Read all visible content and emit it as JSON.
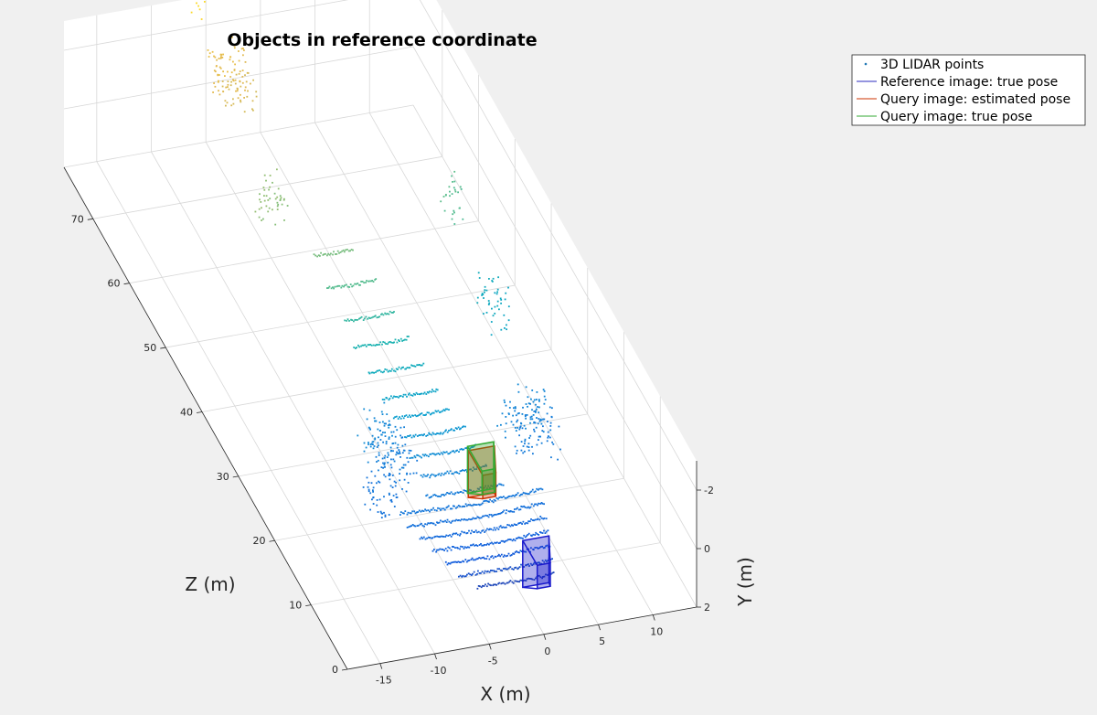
{
  "chart_data": {
    "type": "scatter",
    "subtype": "3d-point-cloud",
    "title": "Objects in reference coordinate",
    "xlabel": "X (m)",
    "ylabel": "Y (m)",
    "zlabel": "Z (m)",
    "xlim": [
      -18,
      14
    ],
    "ylim": [
      -3,
      2
    ],
    "zlim": [
      0,
      78
    ],
    "x_ticks": [
      -15,
      -10,
      -5,
      0,
      5,
      10
    ],
    "y_ticks": [
      -2,
      0,
      2
    ],
    "z_ticks": [
      0,
      10,
      20,
      30,
      40,
      50,
      60,
      70
    ],
    "x_tick_labels": [
      "-15",
      "-10",
      "-5",
      "0",
      "5",
      "10"
    ],
    "y_tick_labels": [
      "-2",
      "0",
      "2"
    ],
    "z_tick_labels": [
      "0",
      "10",
      "20",
      "30",
      "40",
      "50",
      "60",
      "70"
    ],
    "grid": true,
    "colormap": "parula",
    "legend_position": "top-right, outside axes",
    "legend": [
      {
        "label": "3D LIDAR points",
        "marker": "point",
        "color": "#1f77b4"
      },
      {
        "label": "Reference image: true pose",
        "marker": "line",
        "color": "#2b2bbf"
      },
      {
        "label": "Query image: estimated pose",
        "marker": "line",
        "color": "#cc3300"
      },
      {
        "label": "Query image: true pose",
        "marker": "line",
        "color": "#33aa33"
      }
    ],
    "series": [
      {
        "name": "3D LIDAR points",
        "kind": "point-cloud",
        "scan_rings": [
          {
            "z": 6,
            "x_range": [
              -4,
              3
            ],
            "y": 1.5
          },
          {
            "z": 8,
            "x_range": [
              -5,
              3.5
            ],
            "y": 1.5
          },
          {
            "z": 10,
            "x_range": [
              -5.5,
              4
            ],
            "y": 1.5
          },
          {
            "z": 12,
            "x_range": [
              -6,
              4.5
            ],
            "y": 1.5
          },
          {
            "z": 14,
            "x_range": [
              -6.5,
              5
            ],
            "y": 1.5
          },
          {
            "z": 16,
            "x_range": [
              -7,
              5.5
            ],
            "y": 1.5
          },
          {
            "z": 18,
            "x_range": [
              -7,
              6
            ],
            "y": 1.5
          },
          {
            "z": 20,
            "x_range": [
              -4,
              3
            ],
            "y": 1.5
          },
          {
            "z": 23,
            "x_range": [
              -3.5,
              2.5
            ],
            "y": 1.5
          },
          {
            "z": 26,
            "x_range": [
              -3.5,
              2.5
            ],
            "y": 1.5
          },
          {
            "z": 29,
            "x_range": [
              -3,
              2.5
            ],
            "y": 1.5
          },
          {
            "z": 32,
            "x_range": [
              -3,
              2
            ],
            "y": 1.5
          },
          {
            "z": 35,
            "x_range": [
              -3,
              2
            ],
            "y": 1.5
          },
          {
            "z": 39,
            "x_range": [
              -3,
              2
            ],
            "y": 1.5
          },
          {
            "z": 43,
            "x_range": [
              -3,
              2
            ],
            "y": 1.5
          },
          {
            "z": 47,
            "x_range": [
              -2.5,
              2
            ],
            "y": 1.5
          },
          {
            "z": 52,
            "x_range": [
              -2.5,
              2
            ],
            "y": 1.5
          },
          {
            "z": 57,
            "x_range": [
              -2,
              1.5
            ],
            "y": 1.5
          }
        ],
        "clusters": [
          {
            "x": -7,
            "z": 22,
            "y": 0,
            "width": 3,
            "depth": 8
          },
          {
            "x": 6,
            "z": 22,
            "y": 0,
            "width": 4,
            "depth": 6
          },
          {
            "x": -9,
            "z": 18,
            "y": 0.5,
            "width": 3,
            "depth": 3
          },
          {
            "x": 8,
            "z": 38,
            "y": -0.5,
            "width": 2,
            "depth": 4
          },
          {
            "x": 9,
            "z": 52,
            "y": -1,
            "width": 1.5,
            "depth": 3
          },
          {
            "x": -5,
            "z": 60,
            "y": 0,
            "width": 2.5,
            "depth": 3
          },
          {
            "x": -4,
            "z": 74,
            "y": -1,
            "width": 3,
            "depth": 6
          },
          {
            "x": -3,
            "z": 88,
            "y": -1,
            "width": 2,
            "depth": 4
          },
          {
            "x": 6,
            "z": 88,
            "y": -1,
            "width": 2,
            "depth": 2
          }
        ]
      },
      {
        "name": "Reference image: true pose",
        "kind": "camera-frustum",
        "position": {
          "x": 0,
          "y": 0,
          "z": 0
        },
        "color": "#1a1acc"
      },
      {
        "name": "Query image: estimated pose",
        "kind": "camera-frustum",
        "position": {
          "x": -1,
          "y": -0.5,
          "z": 12
        },
        "color": "#cc3300"
      },
      {
        "name": "Query image: true pose",
        "kind": "camera-frustum",
        "position": {
          "x": -1,
          "y": -0.6,
          "z": 12.2
        },
        "color": "#33aa33"
      }
    ]
  },
  "colors": {
    "figure_bg": "#f0f0f0",
    "axes_bg": "#ffffff",
    "grid": "#d8d8d8",
    "axis": "#262626"
  }
}
